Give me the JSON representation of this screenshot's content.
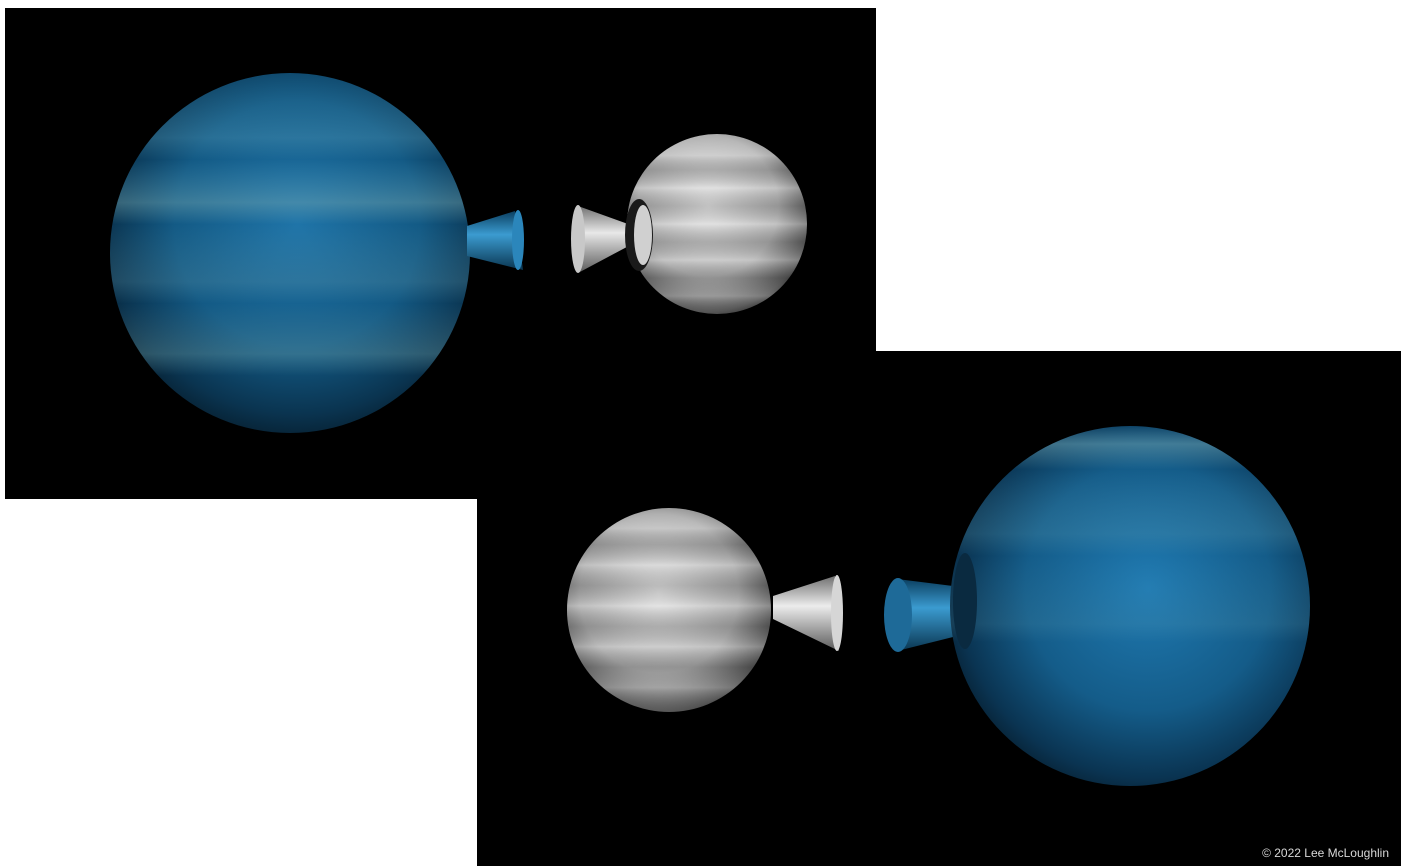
{
  "credit": "© 2022 Lee McLoughlin",
  "colors": {
    "background": "#000000",
    "page": "#ffffff",
    "blue_planet": "#1e6a96",
    "grey_planet": "#b8b8b8"
  },
  "scenes": [
    {
      "name": "blue-planet-left-grey-planet-right"
    },
    {
      "name": "grey-planet-left-blue-planet-right"
    }
  ]
}
